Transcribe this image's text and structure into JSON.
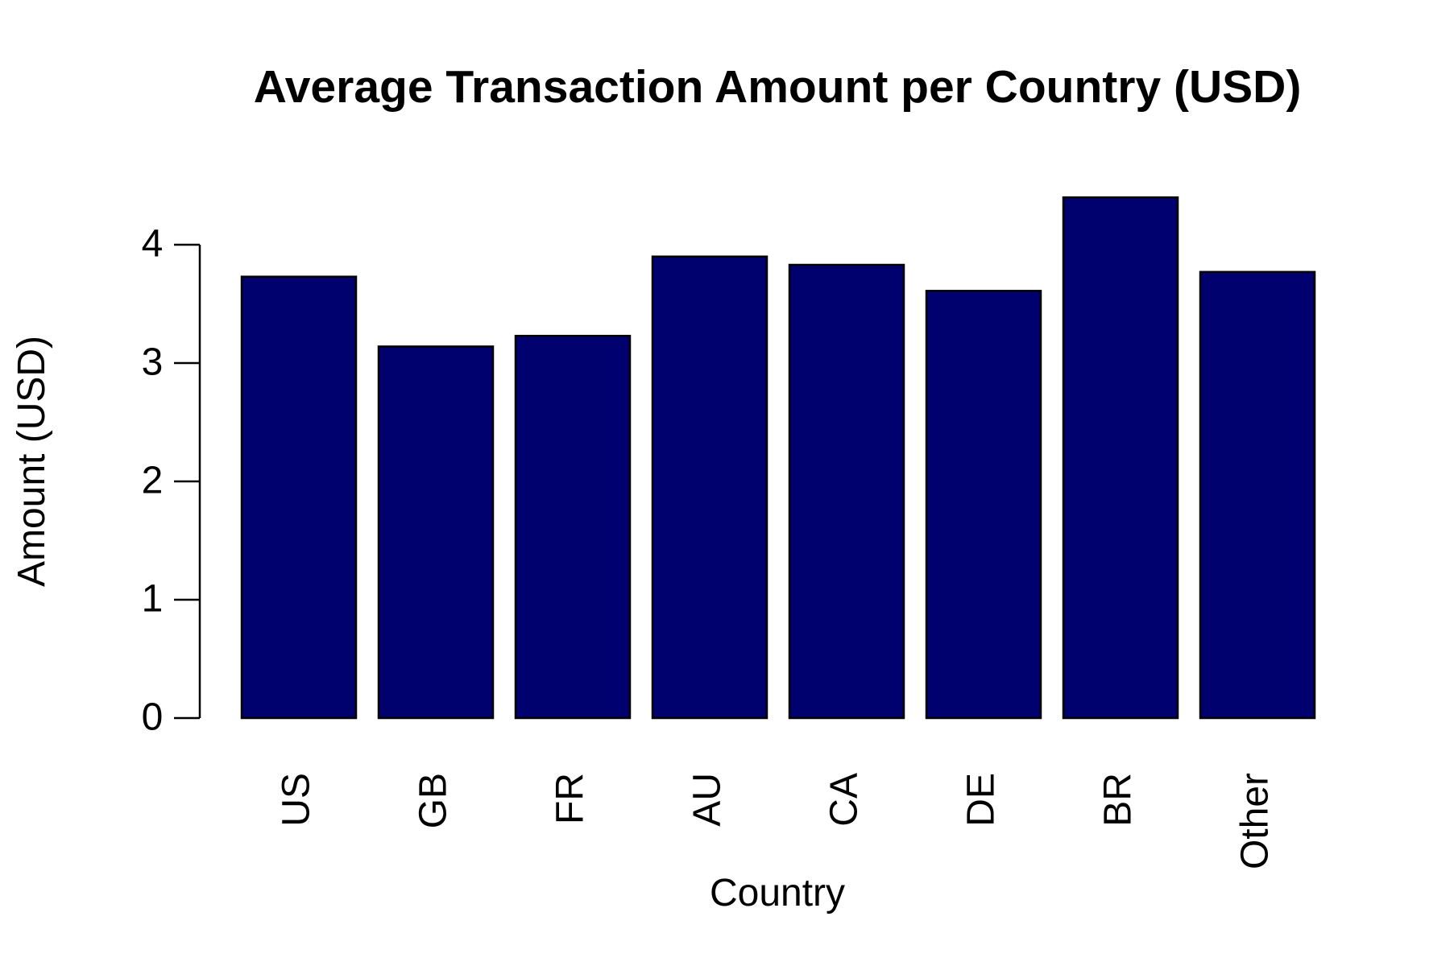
{
  "chart_data": {
    "type": "bar",
    "title": "Average Transaction Amount per Country (USD)",
    "xlabel": "Country",
    "ylabel": "Amount (USD)",
    "categories": [
      "US",
      "GB",
      "FR",
      "AU",
      "CA",
      "DE",
      "BR",
      "Other"
    ],
    "values": [
      3.73,
      3.14,
      3.23,
      3.9,
      3.83,
      3.61,
      4.4,
      3.77
    ],
    "yticks": [
      "0",
      "1",
      "2",
      "3",
      "4"
    ],
    "ylim": [
      0,
      4.4
    ],
    "grid": false,
    "legend": "none",
    "colors": {
      "bar": "#00006E",
      "outline": "#000000"
    }
  }
}
